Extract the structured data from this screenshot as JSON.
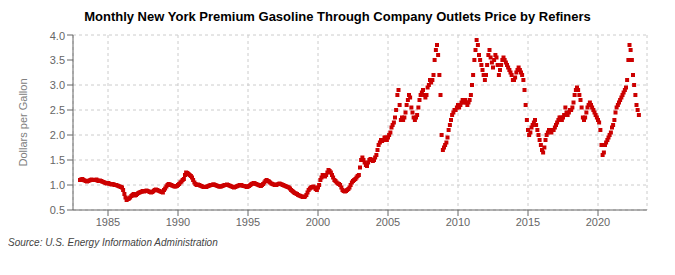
{
  "chart_data": {
    "type": "scatter",
    "title": "Monthly New York Premium Gasoline Through Company Outlets Price by Refiners",
    "ylabel": "Dollars per Gallon",
    "annotations": [
      "Source: U.S. Energy Information Administration"
    ],
    "color": "#cc0000",
    "marker": "square",
    "grid": true,
    "xlim": [
      1982.5,
      2023.5
    ],
    "xticks": [
      1985,
      1990,
      1995,
      2000,
      2005,
      2010,
      2015,
      2020
    ],
    "ylim": [
      0.5,
      4.0
    ],
    "yticks": [
      0.5,
      {
        "value": 1.0,
        "label": "1.0"
      },
      1.5,
      {
        "value": 2.0,
        "label": "2.0"
      },
      2.5,
      {
        "value": 3.0,
        "label": "3.0"
      },
      3.5,
      {
        "value": 4.0,
        "label": "4.0"
      }
    ],
    "x": [
      1983.0,
      1983.08,
      1983.17,
      1983.25,
      1983.33,
      1983.42,
      1983.5,
      1983.58,
      1983.67,
      1983.75,
      1983.83,
      1983.92,
      1984.0,
      1984.08,
      1984.17,
      1984.25,
      1984.33,
      1984.42,
      1984.5,
      1984.58,
      1984.67,
      1984.75,
      1984.83,
      1984.92,
      1985.0,
      1985.08,
      1985.17,
      1985.25,
      1985.33,
      1985.42,
      1985.5,
      1985.58,
      1985.67,
      1985.75,
      1985.83,
      1985.92,
      1986.0,
      1986.08,
      1986.17,
      1986.25,
      1986.33,
      1986.42,
      1986.5,
      1986.58,
      1986.67,
      1986.75,
      1986.83,
      1986.92,
      1987.0,
      1987.08,
      1987.17,
      1987.25,
      1987.33,
      1987.42,
      1987.5,
      1987.58,
      1987.67,
      1987.75,
      1987.83,
      1987.92,
      1988.0,
      1988.08,
      1988.17,
      1988.25,
      1988.33,
      1988.42,
      1988.5,
      1988.58,
      1988.67,
      1988.75,
      1988.83,
      1988.92,
      1989.0,
      1989.08,
      1989.17,
      1989.25,
      1989.33,
      1989.42,
      1989.5,
      1989.58,
      1989.67,
      1989.75,
      1989.83,
      1989.92,
      1990.0,
      1990.08,
      1990.17,
      1990.25,
      1990.33,
      1990.42,
      1990.5,
      1990.58,
      1990.67,
      1990.75,
      1990.83,
      1990.92,
      1991.0,
      1991.08,
      1991.17,
      1991.25,
      1991.33,
      1991.42,
      1991.5,
      1991.58,
      1991.67,
      1991.75,
      1991.83,
      1991.92,
      1992.0,
      1992.08,
      1992.17,
      1992.25,
      1992.33,
      1992.42,
      1992.5,
      1992.58,
      1992.67,
      1992.75,
      1992.83,
      1992.92,
      1993.0,
      1993.08,
      1993.17,
      1993.25,
      1993.33,
      1993.42,
      1993.5,
      1993.58,
      1993.67,
      1993.75,
      1993.83,
      1993.92,
      1994.0,
      1994.08,
      1994.17,
      1994.25,
      1994.33,
      1994.42,
      1994.5,
      1994.58,
      1994.67,
      1994.75,
      1994.83,
      1994.92,
      1995.0,
      1995.08,
      1995.17,
      1995.25,
      1995.33,
      1995.42,
      1995.5,
      1995.58,
      1995.67,
      1995.75,
      1995.83,
      1995.92,
      1996.0,
      1996.08,
      1996.17,
      1996.25,
      1996.33,
      1996.42,
      1996.5,
      1996.58,
      1996.67,
      1996.75,
      1996.83,
      1996.92,
      1997.0,
      1997.08,
      1997.17,
      1997.25,
      1997.33,
      1997.42,
      1997.5,
      1997.58,
      1997.67,
      1997.75,
      1997.83,
      1997.92,
      1998.0,
      1998.08,
      1998.17,
      1998.25,
      1998.33,
      1998.42,
      1998.5,
      1998.58,
      1998.67,
      1998.75,
      1998.83,
      1998.92,
      1999.0,
      1999.08,
      1999.17,
      1999.25,
      1999.33,
      1999.42,
      1999.5,
      1999.58,
      1999.67,
      1999.75,
      1999.83,
      1999.92,
      2000.0,
      2000.08,
      2000.17,
      2000.25,
      2000.33,
      2000.42,
      2000.5,
      2000.58,
      2000.67,
      2000.75,
      2000.83,
      2000.92,
      2001.0,
      2001.08,
      2001.17,
      2001.25,
      2001.33,
      2001.42,
      2001.5,
      2001.58,
      2001.67,
      2001.75,
      2001.83,
      2001.92,
      2002.0,
      2002.08,
      2002.17,
      2002.25,
      2002.33,
      2002.42,
      2002.5,
      2002.58,
      2002.67,
      2002.75,
      2002.83,
      2002.92,
      2003.0,
      2003.08,
      2003.17,
      2003.25,
      2003.33,
      2003.42,
      2003.5,
      2003.58,
      2003.67,
      2003.75,
      2003.83,
      2003.92,
      2004.0,
      2004.08,
      2004.17,
      2004.25,
      2004.33,
      2004.42,
      2004.5,
      2004.58,
      2004.67,
      2004.75,
      2004.83,
      2004.92,
      2005.0,
      2005.08,
      2005.17,
      2005.25,
      2005.33,
      2005.42,
      2005.5,
      2005.58,
      2005.67,
      2005.75,
      2005.83,
      2005.92,
      2006.0,
      2006.08,
      2006.17,
      2006.25,
      2006.33,
      2006.42,
      2006.5,
      2006.58,
      2006.67,
      2006.75,
      2006.83,
      2006.92,
      2007.0,
      2007.08,
      2007.17,
      2007.25,
      2007.33,
      2007.42,
      2007.5,
      2007.58,
      2007.67,
      2007.75,
      2007.83,
      2007.92,
      2008.0,
      2008.08,
      2008.17,
      2008.25,
      2008.33,
      2008.42,
      2008.5,
      2008.58,
      2008.67,
      2008.75,
      2008.83,
      2008.92,
      2009.0,
      2009.08,
      2009.17,
      2009.25,
      2009.33,
      2009.42,
      2009.5,
      2009.58,
      2009.67,
      2009.75,
      2009.83,
      2009.92,
      2010.0,
      2010.08,
      2010.17,
      2010.25,
      2010.33,
      2010.42,
      2010.5,
      2010.58,
      2010.67,
      2010.75,
      2010.83,
      2010.92,
      2011.0,
      2011.08,
      2011.17,
      2011.25,
      2011.33,
      2011.42,
      2011.5,
      2011.58,
      2011.67,
      2011.75,
      2011.83,
      2011.92,
      2012.0,
      2012.08,
      2012.17,
      2012.25,
      2012.33,
      2012.42,
      2012.5,
      2012.58,
      2012.67,
      2012.75,
      2012.83,
      2012.92,
      2013.0,
      2013.08,
      2013.17,
      2013.25,
      2013.33,
      2013.42,
      2013.5,
      2013.58,
      2013.67,
      2013.75,
      2013.83,
      2013.92,
      2014.0,
      2014.08,
      2014.17,
      2014.25,
      2014.33,
      2014.42,
      2014.5,
      2014.58,
      2014.67,
      2014.75,
      2014.83,
      2014.92,
      2015.0,
      2015.08,
      2015.17,
      2015.25,
      2015.33,
      2015.42,
      2015.5,
      2015.58,
      2015.67,
      2015.75,
      2015.83,
      2015.92,
      2016.0,
      2016.08,
      2016.17,
      2016.25,
      2016.33,
      2016.42,
      2016.5,
      2016.58,
      2016.67,
      2016.75,
      2016.83,
      2016.92,
      2017.0,
      2017.08,
      2017.17,
      2017.25,
      2017.33,
      2017.42,
      2017.5,
      2017.58,
      2017.67,
      2017.75,
      2017.83,
      2017.92,
      2018.0,
      2018.08,
      2018.17,
      2018.25,
      2018.33,
      2018.42,
      2018.5,
      2018.58,
      2018.67,
      2018.75,
      2018.83,
      2018.92,
      2019.0,
      2019.08,
      2019.17,
      2019.25,
      2019.33,
      2019.42,
      2019.5,
      2019.58,
      2019.67,
      2019.75,
      2019.83,
      2019.92,
      2020.0,
      2020.08,
      2020.17,
      2020.25,
      2020.33,
      2020.42,
      2020.5,
      2020.58,
      2020.67,
      2020.75,
      2020.83,
      2020.92,
      2021.0,
      2021.08,
      2021.17,
      2021.25,
      2021.33,
      2021.42,
      2021.5,
      2021.58,
      2021.67,
      2021.75,
      2021.83,
      2021.92,
      2022.0,
      2022.08,
      2022.17,
      2022.25,
      2022.33,
      2022.42,
      2022.5,
      2022.58,
      2022.67,
      2022.75,
      2022.83,
      2022.92
    ],
    "values": [
      1.1,
      1.11,
      1.12,
      1.1,
      1.09,
      1.08,
      1.07,
      1.08,
      1.09,
      1.1,
      1.11,
      1.1,
      1.1,
      1.1,
      1.11,
      1.09,
      1.08,
      1.09,
      1.08,
      1.07,
      1.06,
      1.05,
      1.04,
      1.03,
      1.04,
      1.03,
      1.02,
      1.01,
      1.02,
      1.01,
      1.0,
      1.0,
      0.99,
      0.98,
      0.97,
      0.96,
      0.95,
      0.9,
      0.82,
      0.75,
      0.7,
      0.72,
      0.73,
      0.75,
      0.78,
      0.8,
      0.82,
      0.79,
      0.8,
      0.82,
      0.84,
      0.85,
      0.86,
      0.87,
      0.88,
      0.87,
      0.88,
      0.89,
      0.88,
      0.87,
      0.86,
      0.85,
      0.86,
      0.88,
      0.9,
      0.91,
      0.9,
      0.89,
      0.88,
      0.87,
      0.86,
      0.85,
      0.9,
      0.93,
      0.97,
      1.0,
      1.02,
      1.01,
      1.0,
      0.99,
      0.98,
      0.97,
      0.97,
      0.98,
      1.0,
      1.02,
      1.05,
      1.07,
      1.1,
      1.12,
      1.2,
      1.25,
      1.24,
      1.22,
      1.2,
      1.18,
      1.15,
      1.1,
      1.05,
      1.02,
      1.0,
      1.01,
      1.0,
      0.99,
      0.98,
      0.97,
      0.96,
      0.96,
      0.96,
      0.97,
      0.98,
      0.99,
      1.0,
      1.0,
      1.01,
      1.01,
      1.0,
      0.99,
      0.98,
      0.97,
      0.97,
      0.97,
      0.98,
      0.99,
      1.0,
      1.0,
      1.01,
      1.0,
      0.99,
      0.98,
      0.97,
      0.96,
      0.95,
      0.96,
      0.97,
      0.98,
      0.99,
      1.0,
      1.0,
      0.99,
      0.98,
      0.98,
      0.97,
      0.96,
      0.97,
      0.98,
      1.0,
      1.02,
      1.03,
      1.04,
      1.03,
      1.02,
      1.01,
      1.0,
      0.99,
      0.98,
      1.0,
      1.02,
      1.05,
      1.08,
      1.1,
      1.08,
      1.07,
      1.05,
      1.03,
      1.02,
      1.01,
      1.0,
      1.0,
      1.01,
      1.02,
      1.03,
      1.02,
      1.01,
      1.0,
      0.99,
      0.98,
      0.97,
      0.96,
      0.95,
      0.93,
      0.9,
      0.88,
      0.86,
      0.84,
      0.83,
      0.82,
      0.8,
      0.79,
      0.78,
      0.77,
      0.76,
      0.76,
      0.77,
      0.8,
      0.85,
      0.9,
      0.93,
      0.95,
      0.96,
      0.97,
      0.95,
      0.92,
      0.9,
      0.95,
      1.0,
      1.1,
      1.15,
      1.2,
      1.18,
      1.17,
      1.2,
      1.25,
      1.3,
      1.28,
      1.25,
      1.2,
      1.15,
      1.1,
      1.08,
      1.05,
      1.03,
      1.02,
      1.0,
      0.95,
      0.9,
      0.88,
      0.87,
      0.88,
      0.9,
      0.92,
      0.95,
      1.0,
      1.05,
      1.08,
      1.1,
      1.12,
      1.15,
      1.18,
      1.2,
      1.35,
      1.5,
      1.55,
      1.5,
      1.45,
      1.4,
      1.38,
      1.45,
      1.5,
      1.52,
      1.5,
      1.48,
      1.5,
      1.55,
      1.6,
      1.7,
      1.8,
      1.85,
      1.9,
      1.88,
      1.9,
      1.95,
      1.95,
      1.9,
      1.95,
      2.0,
      2.05,
      2.15,
      2.2,
      2.25,
      2.35,
      2.5,
      2.8,
      2.9,
      2.6,
      2.3,
      2.35,
      2.3,
      2.35,
      2.45,
      2.6,
      2.7,
      2.8,
      2.75,
      2.55,
      2.45,
      2.35,
      2.3,
      2.35,
      2.4,
      2.55,
      2.7,
      2.8,
      2.85,
      2.9,
      2.8,
      2.75,
      2.8,
      2.95,
      3.0,
      3.1,
      3.05,
      3.1,
      3.2,
      3.5,
      3.7,
      3.8,
      3.6,
      3.2,
      2.8,
      2.0,
      1.7,
      1.75,
      1.8,
      1.85,
      1.95,
      2.1,
      2.2,
      2.3,
      2.4,
      2.45,
      2.5,
      2.5,
      2.55,
      2.6,
      2.55,
      2.6,
      2.65,
      2.7,
      2.65,
      2.7,
      2.65,
      2.6,
      2.65,
      2.7,
      2.8,
      3.0,
      3.2,
      3.5,
      3.7,
      3.9,
      3.8,
      3.6,
      3.5,
      3.4,
      3.3,
      3.2,
      3.1,
      3.2,
      3.4,
      3.6,
      3.7,
      3.55,
      3.45,
      3.35,
      3.5,
      3.6,
      3.55,
      3.4,
      3.2,
      3.3,
      3.4,
      3.5,
      3.55,
      3.5,
      3.45,
      3.4,
      3.35,
      3.3,
      3.25,
      3.2,
      3.1,
      3.1,
      3.15,
      3.25,
      3.3,
      3.35,
      3.3,
      3.25,
      3.2,
      3.1,
      2.9,
      2.6,
      2.3,
      2.1,
      2.0,
      2.05,
      2.15,
      2.2,
      2.25,
      2.3,
      2.2,
      2.1,
      2.0,
      1.9,
      1.8,
      1.7,
      1.65,
      1.75,
      1.9,
      2.0,
      2.05,
      2.1,
      2.1,
      2.05,
      2.1,
      2.1,
      2.15,
      2.2,
      2.25,
      2.3,
      2.35,
      2.35,
      2.3,
      2.35,
      2.4,
      2.55,
      2.45,
      2.4,
      2.45,
      2.5,
      2.5,
      2.55,
      2.65,
      2.8,
      2.9,
      2.95,
      2.9,
      2.8,
      2.7,
      2.55,
      2.35,
      2.3,
      2.35,
      2.45,
      2.55,
      2.6,
      2.65,
      2.6,
      2.55,
      2.5,
      2.45,
      2.4,
      2.35,
      2.3,
      2.25,
      2.1,
      1.8,
      1.6,
      1.65,
      1.8,
      1.85,
      1.9,
      1.95,
      2.0,
      2.05,
      2.15,
      2.2,
      2.3,
      2.45,
      2.55,
      2.6,
      2.65,
      2.7,
      2.75,
      2.8,
      2.85,
      2.9,
      2.95,
      3.1,
      3.5,
      3.8,
      3.7,
      3.5,
      3.2,
      3.0,
      2.8,
      2.6,
      2.5,
      2.4
    ]
  }
}
